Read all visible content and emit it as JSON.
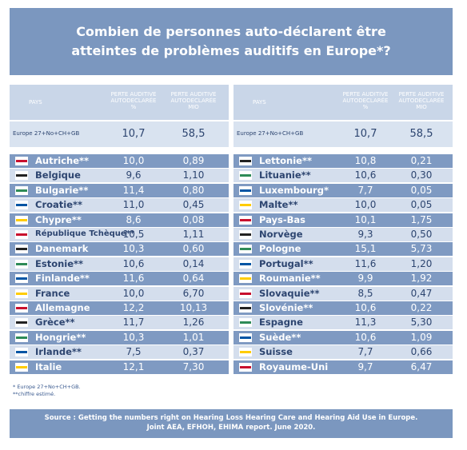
{
  "header": {
    "title": [
      "Combien de personnes auto-déclarent être",
      "atteintes de problèmes auditifs en Europe*?"
    ]
  },
  "tables": [
    {
      "columns": [
        "PAYS",
        "PERTE AUDITIVE AUTODECLARÉE %",
        "PERTE AUDITIVE AUTODECLARÉE MIO"
      ],
      "summary": [
        "Europe 27+No+CH+GB",
        "10,7",
        "58,5"
      ],
      "rows": [
        [
          "Autriche**",
          "10,0",
          "0,89"
        ],
        [
          "Belgique",
          "9,6",
          "1,10"
        ],
        [
          "Bulgarie**",
          "11,4",
          "0,80"
        ],
        [
          "Croatie**",
          "11,0",
          "0,45"
        ],
        [
          "Chypre**",
          "8,6",
          "0,08"
        ],
        [
          "République Tchèque**",
          "10,5",
          "1,11"
        ],
        [
          "Danemark",
          "10,3",
          "0,60"
        ],
        [
          "Estonie**",
          "10,6",
          "0,14"
        ],
        [
          "Finlande**",
          "11,6",
          "0,64"
        ],
        [
          "France",
          "10,0",
          "6,70"
        ],
        [
          "Allemagne",
          "12,2",
          "10,13"
        ],
        [
          "Grèce**",
          "11,7",
          "1,26"
        ],
        [
          "Hongrie**",
          "10,3",
          "1,01"
        ],
        [
          "Irlande**",
          "7,5",
          "0,37"
        ],
        [
          "Italie",
          "12,1",
          "7,30"
        ]
      ]
    },
    {
      "columns": [
        "PAYS",
        "PERTE AUDITIVE AUTODECLARÉE %",
        "PERTE AUDITIVE AUTODECLARÉE MIO"
      ],
      "summary": [
        "Europe 27+No+CH+GB",
        "10,7",
        "58,5"
      ],
      "rows": [
        [
          "Lettonie**",
          "10,8",
          "0,21"
        ],
        [
          "Lituanie**",
          "10,6",
          "0,30"
        ],
        [
          "Luxembourg*",
          "7,7",
          "0,05"
        ],
        [
          "Malte**",
          "10,0",
          "0,05"
        ],
        [
          "Pays-Bas",
          "10,1",
          "1,75"
        ],
        [
          "Norvège",
          "9,3",
          "0,50"
        ],
        [
          "Pologne",
          "15,1",
          "5,73"
        ],
        [
          "Portugal**",
          "11,6",
          "1,20"
        ],
        [
          "Roumanie**",
          "9,9",
          "1,92"
        ],
        [
          "Slovaquie**",
          "8,5",
          "0,47"
        ],
        [
          "Slovénie**",
          "10,6",
          "0,22"
        ],
        [
          "Espagne",
          "11,3",
          "5,30"
        ],
        [
          "Suède**",
          "10,6",
          "1,09"
        ],
        [
          "Suisse",
          "7,7",
          "0,66"
        ],
        [
          "Royaume-Uni",
          "9,7",
          "6,47"
        ]
      ]
    }
  ],
  "footnotes": [
    "* Europe 27+No+CH+GB.",
    "**chiffre estimé."
  ],
  "source": [
    "Source : Getting the numbers right on Hearing Loss Hearing Care and Hearing Aid Use in Europe.",
    "Joint AEA, EFHOH, EHIMA report. June 2020."
  ]
}
